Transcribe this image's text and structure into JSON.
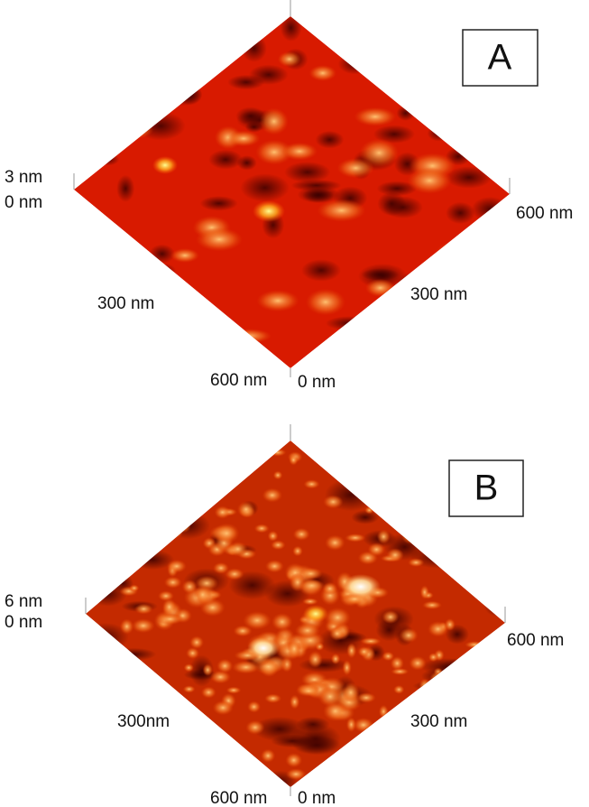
{
  "panels": [
    {
      "label": "A",
      "z_top": "3 nm",
      "z_bottom": "0 nm",
      "right_end": "600 nm",
      "left_mid": "300 nm",
      "right_mid": "300 nm",
      "bottom_left": "600 nm",
      "bottom_right": "0 nm"
    },
    {
      "label": "B",
      "z_top": "6 nm",
      "z_bottom": "0 nm",
      "right_end": "600 nm",
      "left_mid": "300nm",
      "right_mid": "300 nm",
      "bottom_left": "600 nm",
      "bottom_right": "0 nm"
    }
  ]
}
